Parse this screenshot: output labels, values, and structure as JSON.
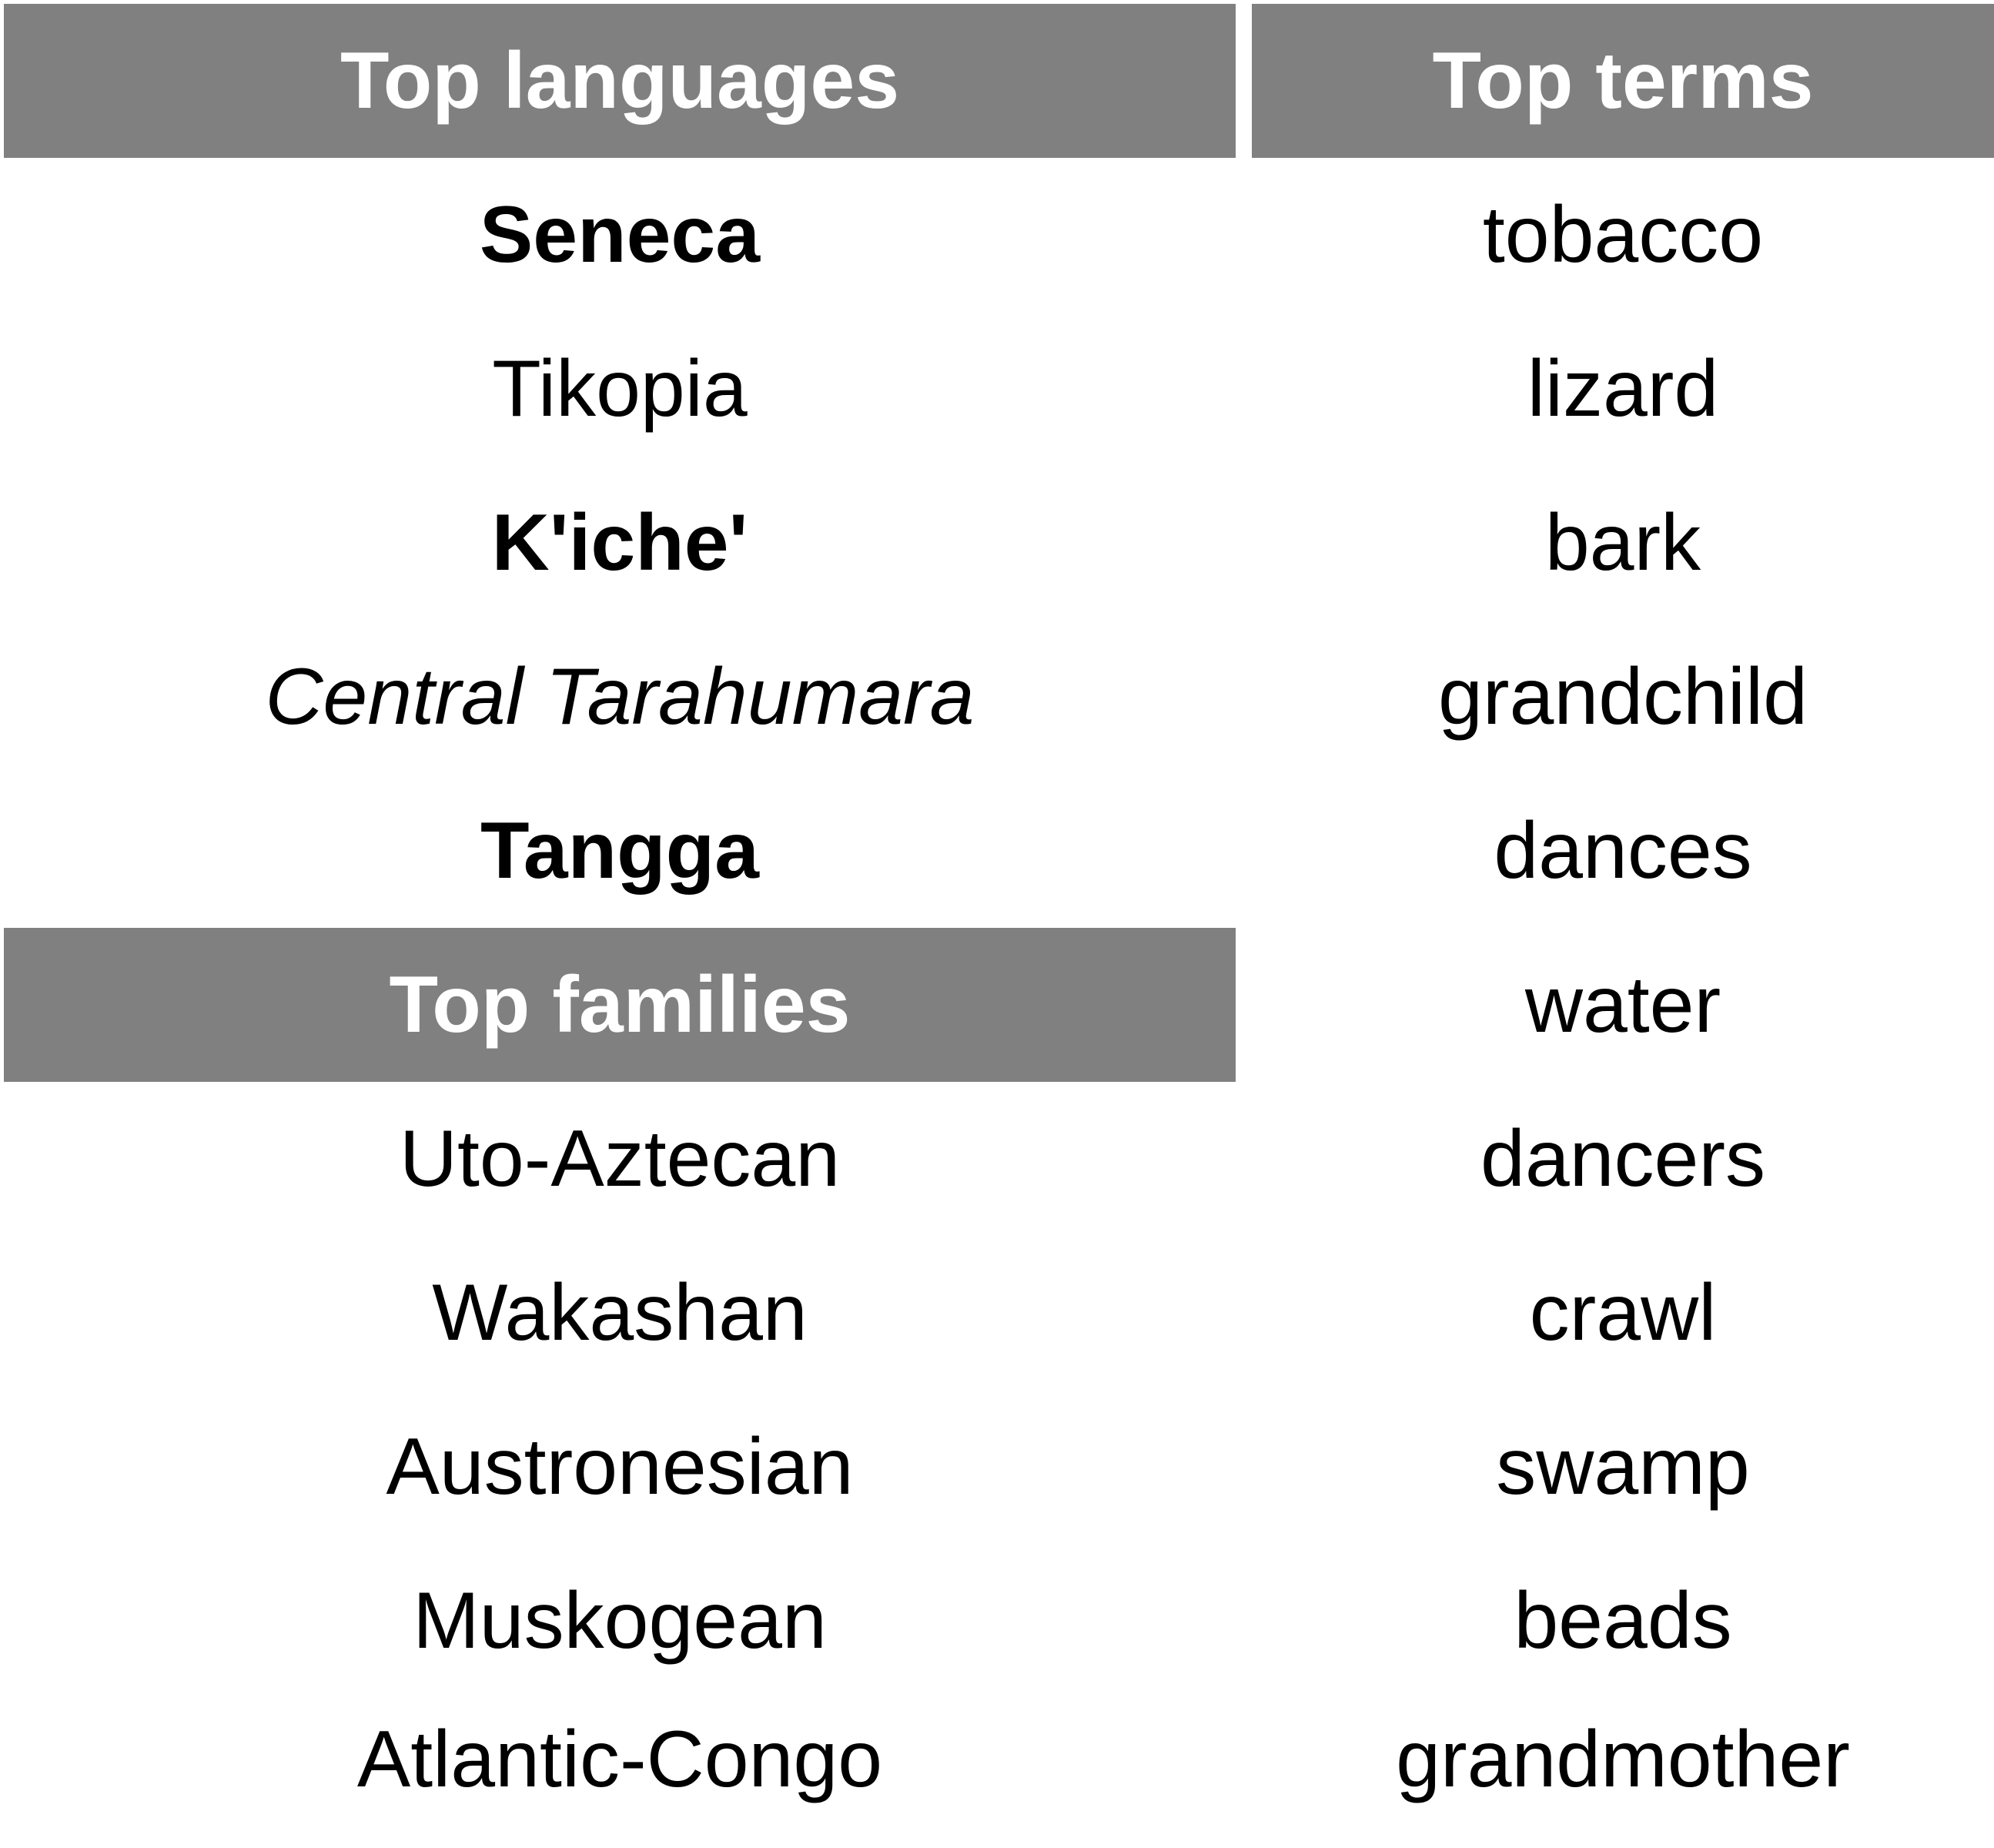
{
  "languages": {
    "header": "Top languages",
    "items": [
      {
        "name": "Seneca"
      },
      {
        "name": "Tikopia"
      },
      {
        "name": "K'iche'"
      },
      {
        "name": "Central Tarahumara"
      },
      {
        "name": "Tangga"
      }
    ]
  },
  "families": {
    "header": "Top families",
    "items": [
      {
        "name": "Uto-Aztecan"
      },
      {
        "name": "Wakashan"
      },
      {
        "name": "Austronesian"
      },
      {
        "name": "Muskogean"
      },
      {
        "name": "Atlantic-Congo"
      }
    ]
  },
  "terms": {
    "header": "Top terms",
    "items": [
      {
        "name": "tobacco"
      },
      {
        "name": "lizard"
      },
      {
        "name": "bark"
      },
      {
        "name": "grandchild"
      },
      {
        "name": "dances"
      },
      {
        "name": "water"
      },
      {
        "name": "dancers"
      },
      {
        "name": "crawl"
      },
      {
        "name": "swamp"
      },
      {
        "name": "beads"
      },
      {
        "name": "grandmother"
      }
    ]
  },
  "colors": {
    "header_background": "#808080",
    "header_text": "#ffffff",
    "body_text": "#000000"
  }
}
